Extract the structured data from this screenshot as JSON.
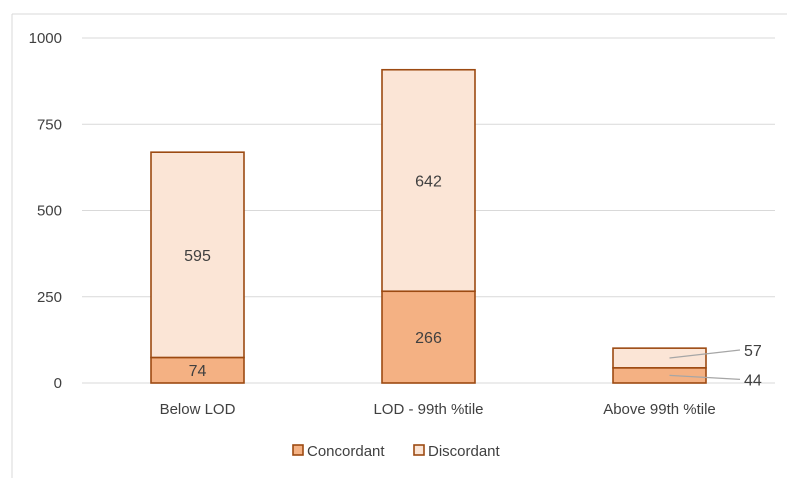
{
  "chart_data": {
    "type": "bar",
    "stacked": true,
    "categories": [
      "Below LOD",
      "LOD - 99th %tile",
      "Above 99th %tile"
    ],
    "series": [
      {
        "name": "Concordant",
        "values": [
          74,
          266,
          44
        ],
        "color": "#f4b183"
      },
      {
        "name": "Discordant",
        "values": [
          595,
          642,
          57
        ],
        "color": "#fbe5d6"
      }
    ],
    "ylim": [
      0,
      1000
    ],
    "yticks": [
      0,
      250,
      500,
      750,
      1000
    ],
    "grid": true,
    "legend": "bottom",
    "bar_outline_color": "#9c4a12",
    "data_labels": [
      [
        "74",
        "595"
      ],
      [
        "266",
        "642"
      ],
      [
        "44",
        "57"
      ]
    ]
  }
}
